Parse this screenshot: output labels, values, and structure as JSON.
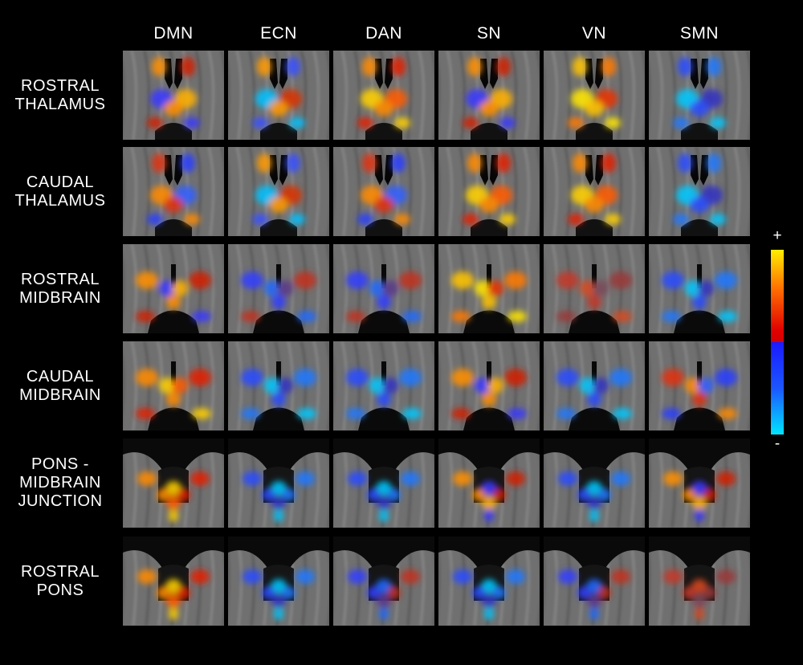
{
  "columns": [
    "DMN",
    "ECN",
    "DAN",
    "SN",
    "VN",
    "SMN"
  ],
  "rows": [
    [
      "ROSTRAL",
      "THALAMUS"
    ],
    [
      "CAUDAL",
      "THALAMUS"
    ],
    [
      "ROSTRAL",
      "MIDBRAIN"
    ],
    [
      "CAUDAL",
      "MIDBRAIN"
    ],
    [
      "PONS -",
      "MIDBRAIN",
      "JUNCTION"
    ],
    [
      "ROSTRAL",
      "PONS"
    ]
  ],
  "colorbar": {
    "max_label": "+",
    "min_label": "-",
    "colors": [
      "#ffee00",
      "#ff6a00",
      "#e00000",
      "#d40000",
      "#1a1aff",
      "#1b56ff",
      "#00e5ff"
    ]
  },
  "activation_maps": [
    [
      "pos-mixed",
      "neg-center",
      "pos",
      "pos-mixed",
      "pos-strong",
      "neg"
    ],
    [
      "mixed",
      "neg-center",
      "mixed",
      "pos",
      "pos",
      "neg"
    ],
    [
      "pos-mixed",
      "neg-mixed",
      "neg-mixed",
      "pos-strong",
      "pos-weak",
      "neg"
    ],
    [
      "pos",
      "neg",
      "neg",
      "pos-mixed",
      "neg",
      "mixed"
    ],
    [
      "pos",
      "neg",
      "neg",
      "pos-mixed",
      "neg",
      "pos-mixed"
    ],
    [
      "pos",
      "neg",
      "neg-mixed",
      "neg",
      "neg-mixed",
      "pos-weak"
    ]
  ]
}
